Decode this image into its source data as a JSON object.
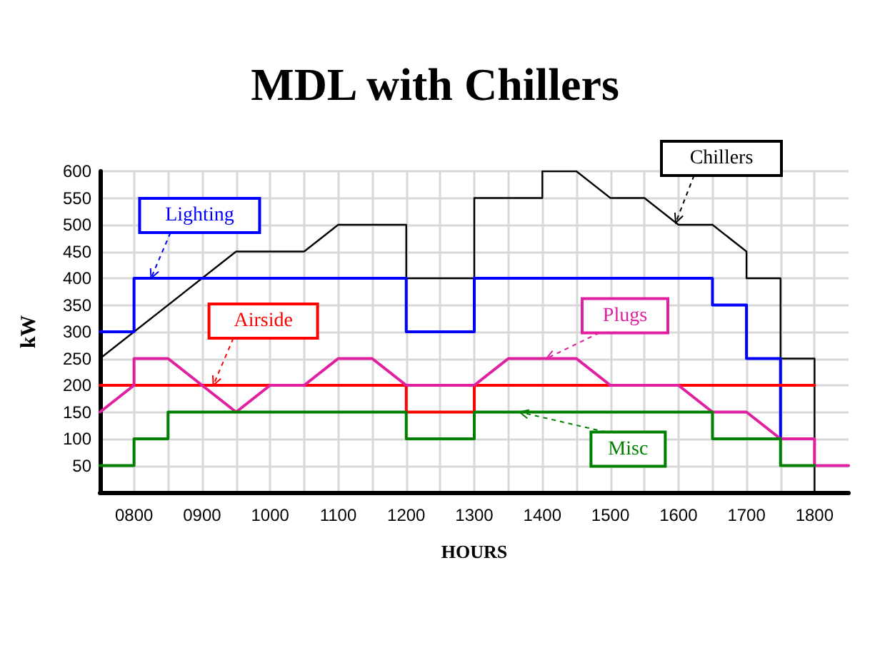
{
  "chart_data": {
    "type": "line",
    "title": "MDL with Chillers",
    "xlabel": "HOURS",
    "ylabel": "kW",
    "xlim": [
      750,
      1850
    ],
    "xticks": [
      {
        "value": 800,
        "label": "0800"
      },
      {
        "value": 850,
        "label": null
      },
      {
        "value": 900,
        "label": "0900"
      },
      {
        "value": 950,
        "label": null
      },
      {
        "value": 1000,
        "label": "1000"
      },
      {
        "value": 1050,
        "label": null
      },
      {
        "value": 1100,
        "label": "1100"
      },
      {
        "value": 1150,
        "label": null
      },
      {
        "value": 1200,
        "label": "1200"
      },
      {
        "value": 1250,
        "label": null
      },
      {
        "value": 1300,
        "label": "1300"
      },
      {
        "value": 1350,
        "label": null
      },
      {
        "value": 1400,
        "label": "1400"
      },
      {
        "value": 1450,
        "label": null
      },
      {
        "value": 1500,
        "label": "1500"
      },
      {
        "value": 1550,
        "label": null
      },
      {
        "value": 1600,
        "label": "1600"
      },
      {
        "value": 1650,
        "label": null
      },
      {
        "value": 1700,
        "label": "1700"
      },
      {
        "value": 1750,
        "label": null
      },
      {
        "value": 1800,
        "label": "1800"
      }
    ],
    "ylim": [
      0,
      600
    ],
    "yticks": [
      50,
      100,
      150,
      200,
      250,
      300,
      350,
      400,
      450,
      500,
      550,
      600
    ],
    "grid": true,
    "legend": false,
    "marker": "none",
    "line_style": "solid",
    "series": [
      {
        "name": "Chillers",
        "color": "#000000",
        "x": [
          750,
          950,
          1050,
          1100,
          1200,
          1200,
          1300,
          1300,
          1400,
          1400,
          1450,
          1500,
          1550,
          1600,
          1650,
          1700,
          1700,
          1750,
          1750,
          1800,
          1800
        ],
        "values": [
          250,
          450,
          450,
          500,
          500,
          400,
          400,
          550,
          550,
          600,
          600,
          550,
          550,
          500,
          500,
          450,
          400,
          400,
          250,
          250,
          0
        ]
      },
      {
        "name": "Lighting",
        "color": "#0000ff",
        "x": [
          750,
          800,
          800,
          1200,
          1200,
          1300,
          1300,
          1650,
          1650,
          1700,
          1700,
          1750,
          1750
        ],
        "values": [
          300,
          300,
          400,
          400,
          300,
          300,
          400,
          400,
          350,
          350,
          250,
          250,
          100
        ]
      },
      {
        "name": "Airside",
        "color": "#ff0000",
        "x": [
          750,
          1200,
          1200,
          1300,
          1300,
          1800
        ],
        "values": [
          200,
          200,
          150,
          150,
          200,
          200
        ]
      },
      {
        "name": "Plugs",
        "color": "#e020a0",
        "x": [
          750,
          800,
          800,
          850,
          950,
          1000,
          1050,
          1100,
          1150,
          1200,
          1300,
          1350,
          1450,
          1500,
          1600,
          1650,
          1700,
          1750,
          1800,
          1800,
          1850
        ],
        "values": [
          150,
          200,
          250,
          250,
          150,
          200,
          200,
          250,
          250,
          200,
          200,
          250,
          250,
          200,
          200,
          150,
          150,
          100,
          100,
          50,
          50
        ]
      },
      {
        "name": "Misc",
        "color": "#008000",
        "x": [
          750,
          800,
          800,
          850,
          850,
          1200,
          1200,
          1300,
          1300,
          1650,
          1650,
          1750,
          1750,
          1800
        ],
        "values": [
          50,
          50,
          100,
          100,
          150,
          150,
          100,
          100,
          150,
          150,
          100,
          100,
          50,
          50
        ]
      }
    ]
  }
}
